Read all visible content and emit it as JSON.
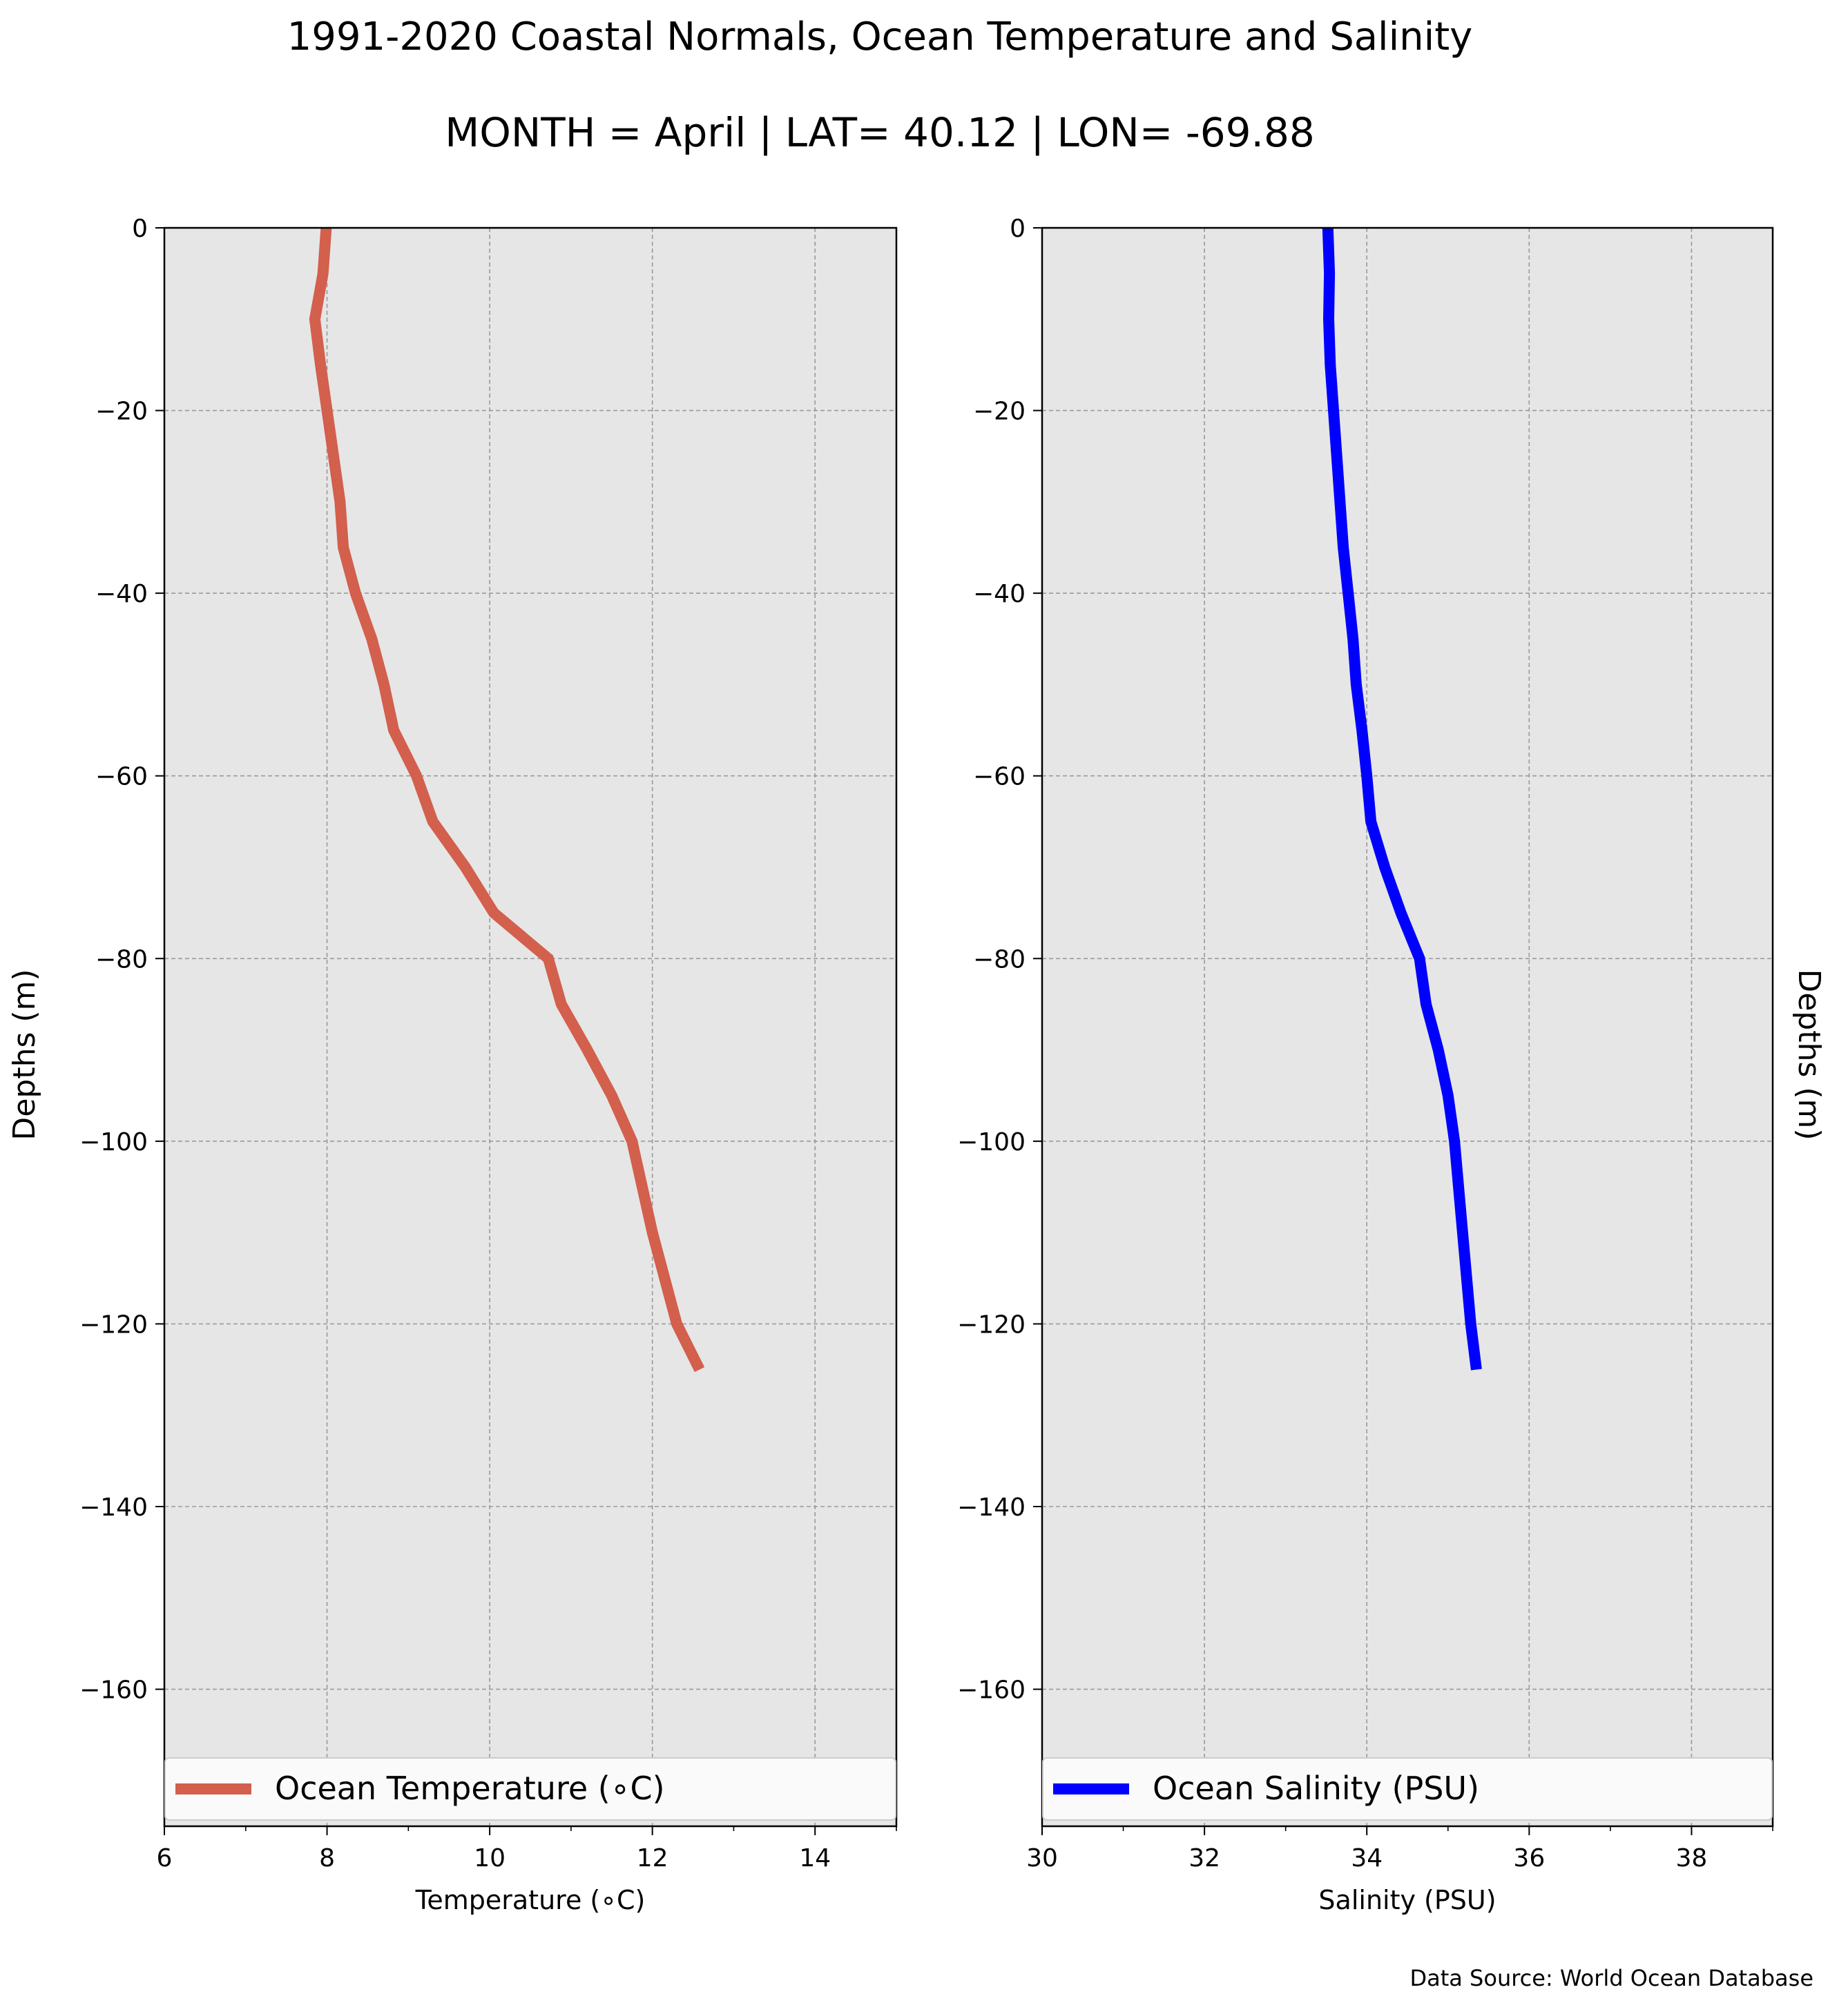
{
  "title": "1991-2020 Coastal Normals, Ocean Temperature and Salinity",
  "subtitle": "MONTH = April | LAT= 40.12 | LON= -69.88",
  "footer": "Data Source: World Ocean Database",
  "colors": {
    "temperature": "#d35f4d",
    "salinity": "#0000ff",
    "plot_background": "#e6e6e6",
    "grid": "#9a9a9a"
  },
  "chart_data": [
    {
      "type": "line",
      "xlabel": "Temperature ($^\\circ$C)",
      "xlabel_display": "Temperature (∘C)",
      "ylabel": "Depths (m)",
      "xlim": [
        6,
        15
      ],
      "ylim": [
        -175,
        0
      ],
      "xticks": [
        6,
        8,
        10,
        12,
        14
      ],
      "yticks": [
        0,
        -20,
        -40,
        -60,
        -80,
        -100,
        -120,
        -140,
        -160
      ],
      "grid": true,
      "legend_placement": "lower-center",
      "series": [
        {
          "name": "Ocean Temperature (∘C)",
          "color": "#d35f4d",
          "x": [
            7.99,
            7.95,
            7.85,
            7.92,
            8.0,
            8.08,
            8.16,
            8.2,
            8.35,
            8.55,
            8.7,
            8.82,
            9.1,
            9.3,
            9.7,
            10.05,
            10.72,
            10.88,
            11.2,
            11.5,
            11.75,
            12.0,
            12.3,
            12.58
          ],
          "y": [
            0,
            -5,
            -10,
            -15,
            -20,
            -25,
            -30,
            -35,
            -40,
            -45,
            -50,
            -55,
            -60,
            -65,
            -70,
            -75,
            -80,
            -85,
            -90,
            -95,
            -100,
            -110,
            -120,
            -125
          ]
        }
      ]
    },
    {
      "type": "line",
      "xlabel": "Salinity (PSU)",
      "ylabel": "Depths (m)",
      "xlim": [
        30,
        39
      ],
      "ylim": [
        -175,
        0
      ],
      "xticks": [
        30,
        32,
        34,
        36,
        38
      ],
      "yticks": [
        0,
        -20,
        -40,
        -60,
        -80,
        -100,
        -120,
        -140,
        -160
      ],
      "grid": true,
      "legend_placement": "lower-center",
      "series": [
        {
          "name": "Ocean Salinity (PSU)",
          "color": "#0000ff",
          "x": [
            33.52,
            33.54,
            33.53,
            33.55,
            33.59,
            33.63,
            33.67,
            33.71,
            33.77,
            33.83,
            33.87,
            33.94,
            34.0,
            34.05,
            34.22,
            34.42,
            34.65,
            34.73,
            34.88,
            35.0,
            35.08,
            35.18,
            35.28,
            35.35
          ],
          "y": [
            0,
            -5,
            -10,
            -15,
            -20,
            -25,
            -30,
            -35,
            -40,
            -45,
            -50,
            -55,
            -60,
            -65,
            -70,
            -75,
            -80,
            -85,
            -90,
            -95,
            -100,
            -110,
            -120,
            -125
          ]
        }
      ]
    }
  ]
}
